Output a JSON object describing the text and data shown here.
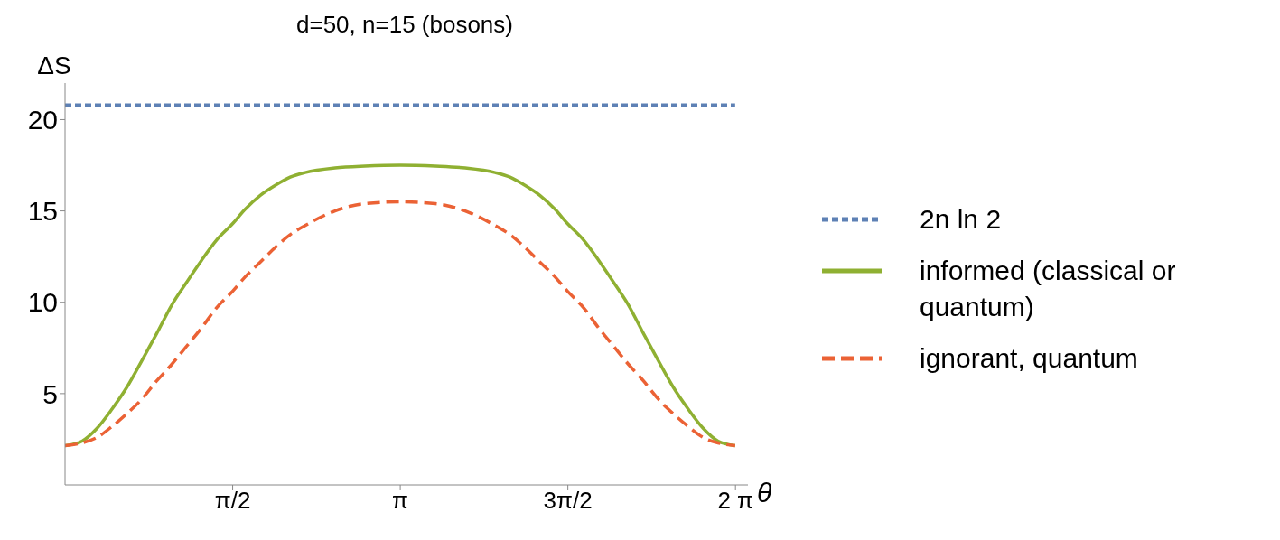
{
  "chart_data": {
    "type": "line",
    "title": "d=50, n=15 (bosons)",
    "xlabel": "θ",
    "ylabel": "ΔS",
    "xlim": [
      0,
      6.4
    ],
    "ylim": [
      0,
      22
    ],
    "xticks": [
      {
        "value": 1.5708,
        "label": "π/2"
      },
      {
        "value": 3.1416,
        "label": "π"
      },
      {
        "value": 4.7124,
        "label": "3π/2"
      },
      {
        "value": 6.2832,
        "label": "2 π"
      }
    ],
    "yticks": [
      5,
      10,
      15,
      20
    ],
    "grid": false,
    "legend": "right",
    "marker": "none",
    "x": [
      0,
      0.16,
      0.3,
      0.44,
      0.58,
      0.72,
      0.86,
      1,
      1.14,
      1.28,
      1.42,
      1.57,
      1.69,
      1.83,
      1.97,
      2.11,
      2.25,
      2.53,
      2.81,
      3.14,
      3.47,
      3.75,
      4.03,
      4.17,
      4.31,
      4.45,
      4.59,
      4.71,
      4.86,
      5,
      5.14,
      5.28,
      5.42,
      5.56,
      5.7,
      5.84,
      5.98,
      6.12,
      6.28
    ],
    "series": [
      {
        "name": "2n ln 2",
        "color": "#5e81b5",
        "line_style": "dotted",
        "x": [
          0,
          6.28
        ],
        "values": [
          20.8,
          20.8
        ]
      },
      {
        "name": "informed (classical or quantum)",
        "color": "#8fb032",
        "line_style": "solid",
        "values": [
          2.15,
          2.4,
          3.1,
          4.15,
          5.35,
          6.8,
          8.3,
          9.85,
          11.1,
          12.3,
          13.4,
          14.3,
          15.1,
          15.85,
          16.4,
          16.85,
          17.1,
          17.35,
          17.45,
          17.5,
          17.45,
          17.35,
          17.1,
          16.85,
          16.4,
          15.85,
          15.1,
          14.3,
          13.4,
          12.3,
          11.1,
          9.85,
          8.3,
          6.8,
          5.35,
          4.15,
          3.1,
          2.4,
          2.15
        ]
      },
      {
        "name": "ignorant, quantum",
        "color": "#eb6235",
        "line_style": "dashed",
        "values": [
          2.15,
          2.3,
          2.6,
          3.2,
          3.9,
          4.7,
          5.7,
          6.6,
          7.6,
          8.6,
          9.7,
          10.6,
          11.4,
          12.2,
          13,
          13.7,
          14.2,
          15,
          15.4,
          15.5,
          15.4,
          15,
          14.2,
          13.7,
          13,
          12.2,
          11.4,
          10.6,
          9.7,
          8.6,
          7.6,
          6.6,
          5.7,
          4.7,
          3.9,
          3.2,
          2.6,
          2.3,
          2.15
        ]
      }
    ]
  }
}
